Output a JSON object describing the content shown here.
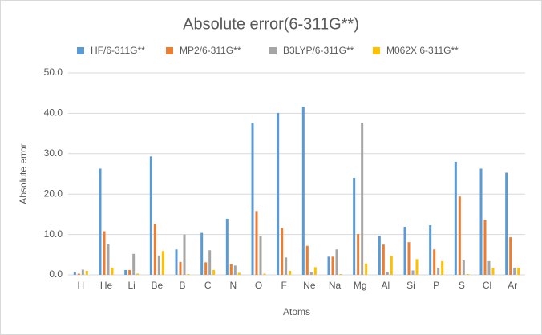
{
  "chart_data": {
    "type": "bar",
    "title": "Absolute error(6-311G**)",
    "x_label": "Atoms",
    "y_label": "Absolute error",
    "categories": [
      "H",
      "He",
      "Li",
      "Be",
      "B",
      "C",
      "N",
      "O",
      "F",
      "Ne",
      "Na",
      "Mg",
      "Al",
      "Si",
      "P",
      "S",
      "Cl",
      "Ar"
    ],
    "series": [
      {
        "name": "HF/6-311G**",
        "color": "#5b9bd5",
        "values": [
          0.6,
          26.3,
          1.2,
          29.3,
          6.3,
          10.4,
          13.9,
          37.6,
          40.1,
          41.6,
          4.5,
          24.0,
          9.6,
          11.9,
          12.3,
          28.0,
          26.3,
          25.3
        ]
      },
      {
        "name": "MP2/6-311G**",
        "color": "#ed7d31",
        "values": [
          0.3,
          10.8,
          1.2,
          12.6,
          3.2,
          3.1,
          2.6,
          15.8,
          11.6,
          7.2,
          4.5,
          10.1,
          7.5,
          8.1,
          6.3,
          19.4,
          13.6,
          9.3
        ]
      },
      {
        "name": "B3LYP/6-311G**",
        "color": "#a5a5a5",
        "values": [
          1.3,
          7.6,
          5.2,
          4.8,
          10.0,
          6.1,
          2.3,
          9.7,
          4.3,
          0.6,
          6.3,
          37.7,
          0.6,
          1.1,
          1.8,
          3.6,
          3.4,
          1.8
        ]
      },
      {
        "name": "M062X 6-311G**",
        "color": "#ffc000",
        "values": [
          1.0,
          1.8,
          0.3,
          5.9,
          0.2,
          1.2,
          0.5,
          0.3,
          1.0,
          1.9,
          0.2,
          2.8,
          4.7,
          3.9,
          3.4,
          0.2,
          1.7,
          1.8
        ]
      }
    ],
    "ylim": [
      0,
      50
    ],
    "yticks": [
      {
        "value": 0,
        "label": "0.0"
      },
      {
        "value": 10,
        "label": "10.0"
      },
      {
        "value": 20,
        "label": "20.0"
      },
      {
        "value": 30,
        "label": "30.0"
      },
      {
        "value": 40,
        "label": "40.0"
      },
      {
        "value": 50,
        "label": "50.0"
      }
    ],
    "grid": true,
    "legend": "top"
  }
}
